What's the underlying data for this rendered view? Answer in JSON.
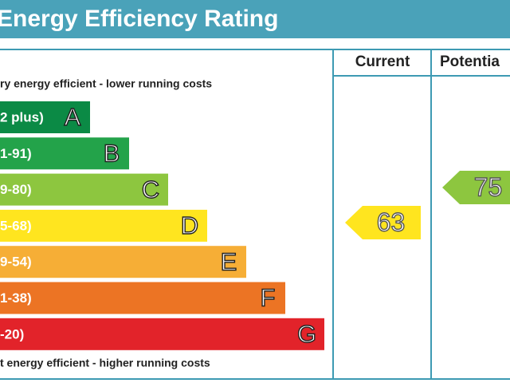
{
  "header": {
    "title": "Energy Efficiency Rating"
  },
  "columns": {
    "current": "Current",
    "potential": "Potentia"
  },
  "scale": {
    "top_label": "ry energy efficient - lower running costs",
    "bottom_label": "t energy efficient - higher running costs",
    "bands": [
      {
        "range": "2 plus)",
        "letter": "A",
        "color": "#0b8a45"
      },
      {
        "range": "1-91)",
        "letter": "B",
        "color": "#23a34a"
      },
      {
        "range": "9-80)",
        "letter": "C",
        "color": "#8dc63f"
      },
      {
        "range": "5-68)",
        "letter": "D",
        "color": "#ffe51f"
      },
      {
        "range": "9-54)",
        "letter": "E",
        "color": "#f6ae36"
      },
      {
        "range": "1-38)",
        "letter": "F",
        "color": "#ec7424"
      },
      {
        "range": "-20)",
        "letter": "G",
        "color": "#e2232a"
      }
    ]
  },
  "ratings": {
    "current": {
      "value": "63",
      "color": "#ffe51f"
    },
    "potential": {
      "value": "75",
      "color": "#8dc63f"
    }
  }
}
